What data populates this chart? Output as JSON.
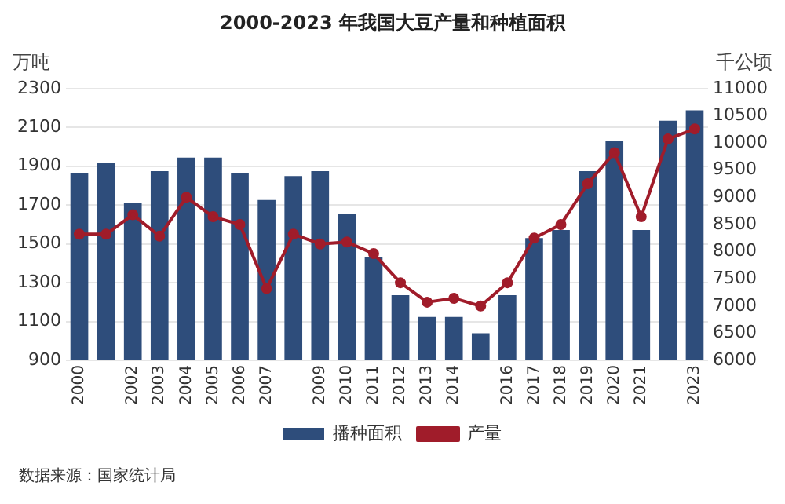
{
  "chart_data": {
    "type": "bar",
    "title": "2000-2023 年我国大豆产量和种植面积",
    "ylabel": "万吨",
    "y2label": "千公顷",
    "categories": [
      "2000",
      null,
      "2002",
      "2003",
      "2004",
      "2005",
      "2006",
      "2007",
      null,
      "2009",
      "2010",
      "2011",
      "2012",
      "2013",
      "2014",
      null,
      "2016",
      "2017",
      "2018",
      "2019",
      "2020",
      "2021",
      null,
      "2023"
    ],
    "series": [
      {
        "name": "播种面积",
        "axis": "y2",
        "color": "#2e4d7b",
        "values": [
          9450,
          9630,
          8890,
          9480,
          9730,
          9730,
          9450,
          8950,
          9390,
          9480,
          8700,
          7900,
          7200,
          6800,
          6800,
          6500,
          7200,
          8250,
          8400,
          9480,
          10040,
          8400,
          10410,
          10600
        ]
      },
      {
        "name": "产量",
        "type": "line",
        "axis": "y",
        "color": "#a01c2a",
        "marker": "circle",
        "values": [
          1550,
          1550,
          1650,
          1540,
          1740,
          1640,
          1600,
          1270,
          1550,
          1500,
          1510,
          1450,
          1300,
          1200,
          1220,
          1180,
          1300,
          1530,
          1600,
          1810,
          1970,
          1640,
          2040,
          2092
        ]
      }
    ],
    "ylim": [
      900,
      2300
    ],
    "yticks": [
      900,
      1100,
      1300,
      1500,
      1700,
      1900,
      2100,
      2300
    ],
    "y2lim": [
      6000,
      11000
    ],
    "y2ticks": [
      6000,
      6500,
      7000,
      7500,
      8000,
      8500,
      9000,
      9500,
      10000,
      10500,
      11000
    ],
    "grid": "y",
    "legend": "bottom",
    "annotations": [
      "数据来源：国家统计局"
    ]
  }
}
